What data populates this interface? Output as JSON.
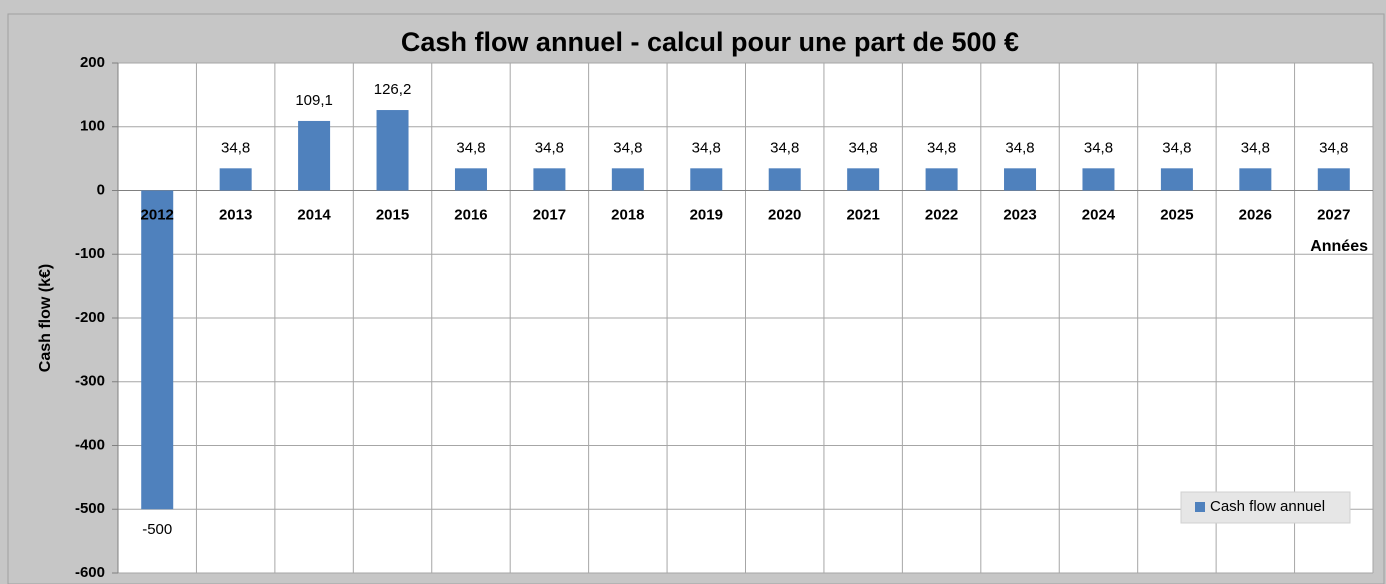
{
  "chart_data": {
    "type": "bar",
    "title": "Cash flow annuel - calcul pour une part de 500 €",
    "x_label": "Années",
    "y_label": "Cash flow (k€)",
    "categories": [
      "2012",
      "2013",
      "2014",
      "2015",
      "2016",
      "2017",
      "2018",
      "2019",
      "2020",
      "2021",
      "2022",
      "2023",
      "2024",
      "2025",
      "2026",
      "2027"
    ],
    "series": [
      {
        "name": "Cash flow annuel",
        "color": "#4f81bd",
        "values": [
          -500,
          34.8,
          109.1,
          126.2,
          34.8,
          34.8,
          34.8,
          34.8,
          34.8,
          34.8,
          34.8,
          34.8,
          34.8,
          34.8,
          34.8,
          34.8
        ],
        "value_labels": [
          "-500",
          "34,8",
          "109,1",
          "126,2",
          "34,8",
          "34,8",
          "34,8",
          "34,8",
          "34,8",
          "34,8",
          "34,8",
          "34,8",
          "34,8",
          "34,8",
          "34,8",
          "34,8"
        ]
      }
    ],
    "ylim": [
      -600,
      200
    ],
    "yticks": [
      -600,
      -500,
      -400,
      -300,
      -200,
      -100,
      0,
      100,
      200
    ],
    "grid": true,
    "legend": "lower right"
  }
}
